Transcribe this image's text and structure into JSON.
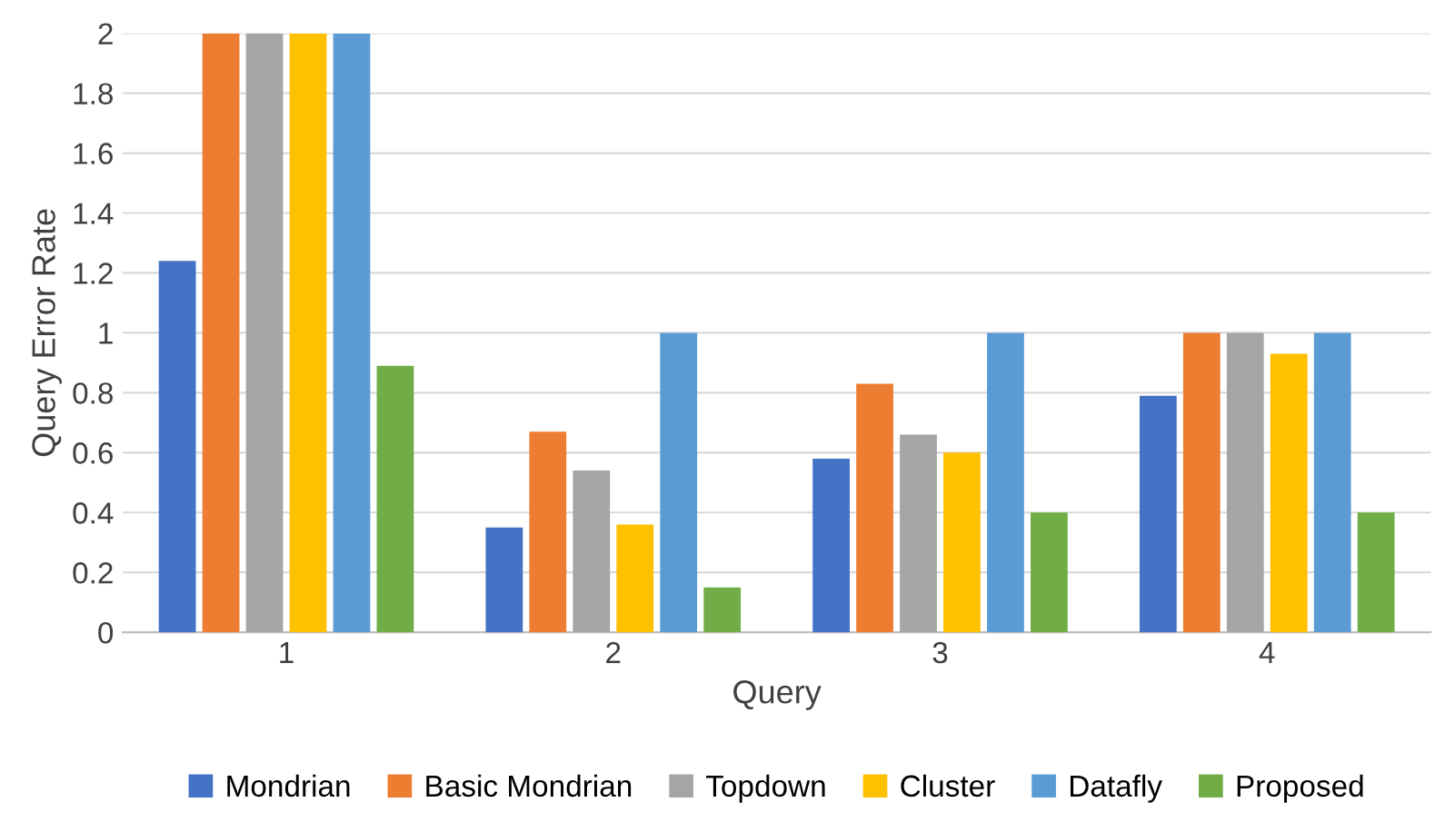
{
  "chart_data": {
    "type": "bar",
    "xlabel": "Query",
    "ylabel": "Query Error Rate",
    "categories": [
      "1",
      "2",
      "3",
      "4"
    ],
    "series": [
      {
        "name": "Mondrian",
        "color": "#4472c4",
        "values": [
          1.24,
          0.35,
          0.58,
          0.79
        ]
      },
      {
        "name": "Basic Mondrian",
        "color": "#ed7d31",
        "values": [
          2,
          0.67,
          0.83,
          1
        ]
      },
      {
        "name": "Topdown",
        "color": "#a5a5a5",
        "values": [
          2,
          0.54,
          0.66,
          1
        ]
      },
      {
        "name": "Cluster",
        "color": "#ffc000",
        "values": [
          2,
          0.36,
          0.6,
          0.93
        ]
      },
      {
        "name": "Datafly",
        "color": "#5b9bd5",
        "values": [
          2,
          1,
          1,
          1
        ]
      },
      {
        "name": "Proposed",
        "color": "#70ad47",
        "values": [
          0.89,
          0.15,
          0.4,
          0.4
        ]
      }
    ],
    "ylim": [
      0,
      2
    ],
    "yticks": [
      0,
      0.2,
      0.4,
      0.6,
      0.8,
      1,
      1.2,
      1.4,
      1.6,
      1.8,
      2
    ],
    "grid": "y",
    "legend": "bottom"
  }
}
